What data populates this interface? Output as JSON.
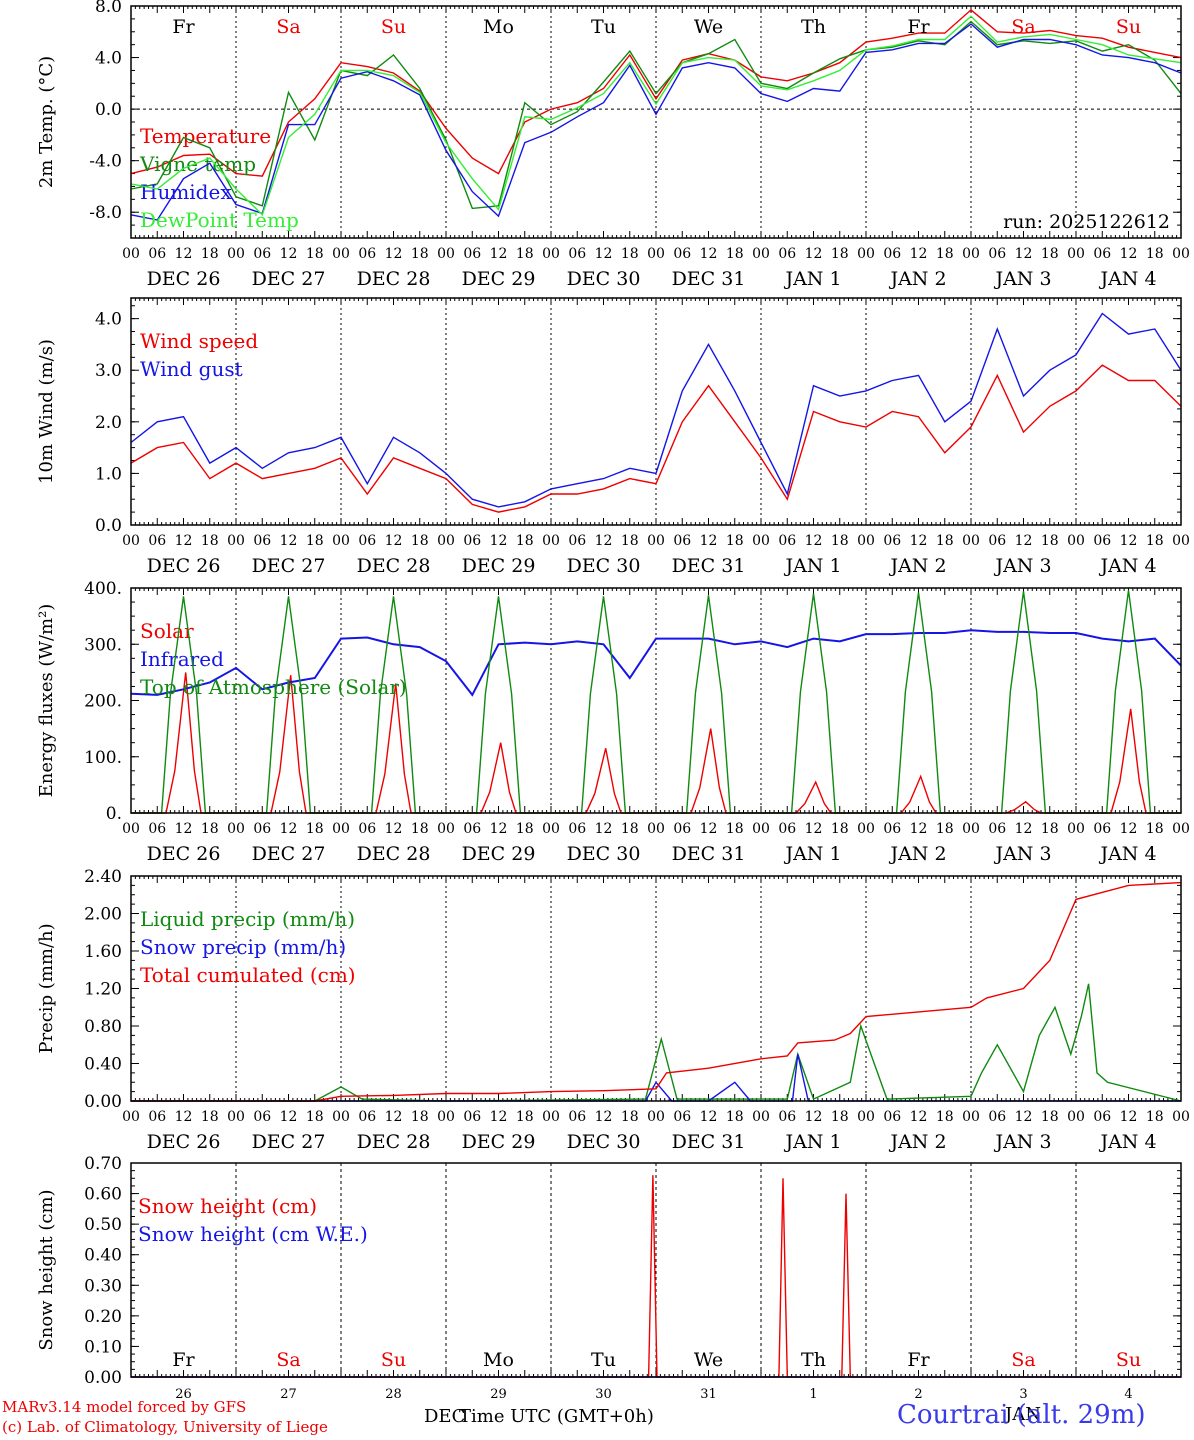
{
  "days": [
    "Fr",
    "Sa",
    "Su",
    "Mo",
    "Tu",
    "We",
    "Th",
    "Fr",
    "Sa",
    "Su"
  ],
  "weekend": [
    false,
    true,
    true,
    false,
    false,
    false,
    false,
    false,
    true,
    true
  ],
  "hour_labels": [
    "00",
    "06",
    "12",
    "18"
  ],
  "date_labels": [
    "DEC 26",
    "DEC 27",
    "DEC 28",
    "DEC 29",
    "DEC 30",
    "DEC 31",
    "JAN  1",
    "JAN  2",
    "JAN  3",
    "JAN  4"
  ],
  "bottom_day_numbers": [
    "26",
    "27",
    "28",
    "29",
    "30",
    "31",
    "1",
    "2",
    "3",
    "4"
  ],
  "colors": {
    "red": "#ee0000",
    "green": "#108a10",
    "blue": "#1515e6",
    "lightgreen": "#33ee33",
    "title_blue": "#3a3ae6"
  },
  "footer": {
    "model": "MARv3.14 model forced by GFS",
    "credit": "(c) Lab. of Climatology, University of Liege",
    "xlabel": "Time UTC (GMT+0h)",
    "month_left": "DEC",
    "month_right": "JAN",
    "location": "Courtrai (alt. 29m)"
  },
  "chart_data": [
    {
      "type": "line",
      "ylabel": "2m Temp. (°C)",
      "ylim": [
        -10,
        8
      ],
      "yticks": [
        8,
        4,
        0,
        -4,
        -8
      ],
      "ytick_labels": [
        "8.0",
        "4.0",
        "0.0",
        "-4.0",
        "-8.0"
      ],
      "zero_line": true,
      "note": "run: 2025122612",
      "x_unit": "days since DEC 26 00 UTC",
      "series": [
        {
          "name": "Temperature",
          "color": "red",
          "x": [
            0,
            0.25,
            0.5,
            0.75,
            1,
            1.25,
            1.5,
            1.75,
            2,
            2.25,
            2.5,
            2.75,
            3,
            3.25,
            3.5,
            3.75,
            4,
            4.25,
            4.5,
            4.75,
            5,
            5.25,
            5.5,
            5.75,
            6,
            6.25,
            6.5,
            6.75,
            7,
            7.25,
            7.5,
            7.75,
            8,
            8.25,
            8.5,
            8.75,
            9,
            9.25,
            9.5,
            9.75,
            10
          ],
          "y": [
            -5,
            -4.5,
            -3.6,
            -3.5,
            -5,
            -5.2,
            -1,
            0.8,
            3.6,
            3.3,
            2.8,
            1.4,
            -1.5,
            -3.8,
            -5,
            -1,
            0,
            0.5,
            1.6,
            4.2,
            0.8,
            3.8,
            4.3,
            3.8,
            2.5,
            2.2,
            2.8,
            3.6,
            5.2,
            5.5,
            5.9,
            5.9,
            7.7,
            6.0,
            5.9,
            6.1,
            5.7,
            5.5,
            4.8,
            4.4,
            4.0
          ]
        },
        {
          "name": "Vigne temp",
          "color": "green",
          "x": [
            0,
            0.25,
            0.5,
            0.75,
            1,
            1.25,
            1.5,
            1.75,
            2,
            2.25,
            2.5,
            2.75,
            3,
            3.25,
            3.5,
            3.75,
            4,
            4.25,
            4.5,
            4.75,
            5,
            5.25,
            5.5,
            5.75,
            6,
            6.25,
            6.5,
            6.75,
            7,
            7.25,
            7.5,
            7.75,
            8,
            8.25,
            8.5,
            8.75,
            9,
            9.25,
            9.5,
            9.75,
            10
          ],
          "y": [
            -6.2,
            -5.8,
            -2.2,
            -3.0,
            -6.8,
            -7.5,
            1.3,
            -2.4,
            3.0,
            2.6,
            4.2,
            1.6,
            -2.4,
            -7.7,
            -7.5,
            0.5,
            -1.2,
            -0.2,
            2.1,
            4.5,
            1.2,
            3.6,
            4.3,
            5.4,
            2.0,
            1.6,
            2.8,
            3.9,
            4.6,
            4.8,
            5.3,
            5.0,
            6.8,
            5.0,
            5.3,
            5.1,
            5.3,
            4.5,
            5.0,
            3.8,
            1.2
          ]
        },
        {
          "name": "Humidex",
          "color": "blue",
          "x": [
            0,
            0.25,
            0.5,
            0.75,
            1,
            1.25,
            1.5,
            1.75,
            2,
            2.25,
            2.5,
            2.75,
            3,
            3.25,
            3.5,
            3.75,
            4,
            4.25,
            4.5,
            4.75,
            5,
            5.25,
            5.5,
            5.75,
            6,
            6.25,
            6.5,
            6.75,
            7,
            7.25,
            7.5,
            7.75,
            8,
            8.25,
            8.5,
            8.75,
            9,
            9.25,
            9.5,
            9.75,
            10
          ],
          "y": [
            -8.2,
            -8.6,
            -5.4,
            -4.2,
            -7.4,
            -8.1,
            -1.2,
            -1.2,
            2.4,
            2.9,
            2.2,
            1.1,
            -3.2,
            -6.4,
            -8.3,
            -2.6,
            -1.8,
            -0.6,
            0.5,
            3.4,
            -0.4,
            3.2,
            3.6,
            3.2,
            1.2,
            0.6,
            1.6,
            1.4,
            4.4,
            4.6,
            5.1,
            5.1,
            6.6,
            4.8,
            5.4,
            5.4,
            5.0,
            4.2,
            4.0,
            3.6,
            2.8
          ]
        },
        {
          "name": "DewPoint Temp",
          "color": "lightgreen",
          "x": [
            0,
            0.25,
            0.5,
            0.75,
            1,
            1.25,
            1.5,
            1.75,
            2,
            2.25,
            2.5,
            2.75,
            3,
            3.25,
            3.5,
            3.75,
            4,
            4.25,
            4.5,
            4.75,
            5,
            5.25,
            5.5,
            5.75,
            6,
            6.25,
            6.5,
            6.75,
            7,
            7.25,
            7.5,
            7.75,
            8,
            8.25,
            8.5,
            8.75,
            9,
            9.25,
            9.5,
            9.75,
            10
          ],
          "y": [
            -5.8,
            -6.2,
            -4.6,
            -3.8,
            -6.2,
            -8.2,
            -2.2,
            -0.4,
            3.0,
            3.0,
            2.6,
            1.3,
            -2.6,
            -5.4,
            -7.8,
            -0.6,
            -0.8,
            0.1,
            1.2,
            3.6,
            0.4,
            3.6,
            4.0,
            3.8,
            1.8,
            1.5,
            2.2,
            3.0,
            4.6,
            4.9,
            5.4,
            5.4,
            7.2,
            5.2,
            5.6,
            5.8,
            5.4,
            5.0,
            4.2,
            3.9,
            3.6
          ]
        }
      ]
    },
    {
      "type": "line",
      "ylabel": "10m Wind (m/s)",
      "ylim": [
        0,
        4.4
      ],
      "yticks": [
        4,
        3,
        2,
        1,
        0
      ],
      "ytick_labels": [
        "4.0",
        "3.0",
        "2.0",
        "1.0",
        "0.0"
      ],
      "series": [
        {
          "name": "Wind speed",
          "color": "red",
          "x": [
            0,
            0.25,
            0.5,
            0.75,
            1,
            1.25,
            1.5,
            1.75,
            2,
            2.25,
            2.5,
            2.75,
            3,
            3.25,
            3.5,
            3.75,
            4,
            4.25,
            4.5,
            4.75,
            5,
            5.25,
            5.5,
            5.75,
            6,
            6.25,
            6.5,
            6.75,
            7,
            7.25,
            7.5,
            7.75,
            8,
            8.25,
            8.5,
            8.75,
            9,
            9.25,
            9.5,
            9.75,
            10
          ],
          "y": [
            1.2,
            1.5,
            1.6,
            0.9,
            1.2,
            0.9,
            1.0,
            1.1,
            1.3,
            0.6,
            1.3,
            1.1,
            0.9,
            0.4,
            0.25,
            0.35,
            0.6,
            0.6,
            0.7,
            0.9,
            0.8,
            2.0,
            2.7,
            2.0,
            1.3,
            0.5,
            2.2,
            2.0,
            1.9,
            2.2,
            2.1,
            1.4,
            1.9,
            2.9,
            1.8,
            2.3,
            2.6,
            3.1,
            2.8,
            2.8,
            2.3
          ]
        },
        {
          "name": "Wind gust",
          "color": "blue",
          "x": [
            0,
            0.25,
            0.5,
            0.75,
            1,
            1.25,
            1.5,
            1.75,
            2,
            2.25,
            2.5,
            2.75,
            3,
            3.25,
            3.5,
            3.75,
            4,
            4.25,
            4.5,
            4.75,
            5,
            5.25,
            5.5,
            5.75,
            6,
            6.25,
            6.5,
            6.75,
            7,
            7.25,
            7.5,
            7.75,
            8,
            8.25,
            8.5,
            8.75,
            9,
            9.25,
            9.5,
            9.75,
            10
          ],
          "y": [
            1.6,
            2.0,
            2.1,
            1.2,
            1.5,
            1.1,
            1.4,
            1.5,
            1.7,
            0.8,
            1.7,
            1.4,
            1.0,
            0.5,
            0.35,
            0.45,
            0.7,
            0.8,
            0.9,
            1.1,
            1.0,
            2.6,
            3.5,
            2.6,
            1.6,
            0.6,
            2.7,
            2.5,
            2.6,
            2.8,
            2.9,
            2.0,
            2.4,
            3.8,
            2.5,
            3.0,
            3.3,
            4.1,
            3.7,
            3.8,
            3.0
          ]
        }
      ]
    },
    {
      "type": "line",
      "ylabel": "Energy fluxes (W/m²)",
      "ylim": [
        0,
        400
      ],
      "yticks": [
        400,
        300,
        200,
        100,
        0
      ],
      "ytick_labels": [
        "400.",
        "300.",
        "200.",
        "100.",
        "0."
      ],
      "series": [
        {
          "name": "Solar",
          "color": "red",
          "peaks": [
            250,
            245,
            230,
            125,
            115,
            150,
            55,
            65,
            20,
            185
          ]
        },
        {
          "name": "Infrared",
          "color": "blue",
          "x": [
            0,
            0.25,
            0.5,
            0.75,
            1,
            1.25,
            1.5,
            1.75,
            2,
            2.25,
            2.5,
            2.75,
            3,
            3.25,
            3.5,
            3.75,
            4,
            4.25,
            4.5,
            4.75,
            5,
            5.25,
            5.5,
            5.75,
            6,
            6.25,
            6.5,
            6.75,
            7,
            7.25,
            7.5,
            7.75,
            8,
            8.25,
            8.5,
            8.75,
            9,
            9.25,
            9.5,
            9.75,
            10
          ],
          "y": [
            212,
            210,
            220,
            232,
            258,
            220,
            232,
            240,
            310,
            312,
            300,
            295,
            270,
            210,
            300,
            303,
            300,
            305,
            300,
            240,
            310,
            310,
            310,
            300,
            305,
            295,
            310,
            305,
            318,
            318,
            320,
            320,
            325,
            322,
            322,
            320,
            320,
            310,
            305,
            310,
            262
          ]
        },
        {
          "name": "Top of Atmosphere (Solar)",
          "color": "green",
          "peaks": [
            385,
            385,
            385,
            385,
            385,
            387,
            390,
            392,
            394,
            396
          ]
        }
      ]
    },
    {
      "type": "line",
      "ylabel": "Precip (mm/h)",
      "ylim": [
        0,
        2.4
      ],
      "yticks": [
        2.4,
        2.0,
        1.6,
        1.2,
        0.8,
        0.4,
        0.0
      ],
      "ytick_labels": [
        "2.40",
        "2.00",
        "1.60",
        "1.20",
        "0.80",
        "0.40",
        "0.00"
      ],
      "series": [
        {
          "name": "Liquid precip (mm/h)",
          "color": "green",
          "x": [
            0,
            1,
            1.75,
            2,
            2.2,
            3,
            4.9,
            5.05,
            5.2,
            6.25,
            6.35,
            6.5,
            6.85,
            6.95,
            7.2,
            8,
            8.1,
            8.25,
            8.5,
            8.65,
            8.8,
            8.95,
            9.05,
            9.12,
            9.2,
            9.3,
            10
          ],
          "y": [
            0,
            0,
            0,
            0.15,
            0.02,
            0,
            0.02,
            0.66,
            0.02,
            0.02,
            0.5,
            0.02,
            0.2,
            0.8,
            0.02,
            0.05,
            0.3,
            0.6,
            0.1,
            0.7,
            1.0,
            0.5,
            0.9,
            1.25,
            0.3,
            0.2,
            0
          ]
        },
        {
          "name": "Snow precip (mm/h)",
          "color": "blue",
          "x": [
            0,
            4.9,
            5.0,
            5.15,
            5.5,
            5.75,
            5.9,
            6.3,
            6.35,
            6.45,
            7,
            10
          ],
          "y": [
            0,
            0,
            0.2,
            0,
            0,
            0.2,
            0,
            0,
            0.5,
            0,
            0,
            0
          ]
        },
        {
          "name": "Total cumulated (cm)",
          "color": "red",
          "x": [
            0,
            1.75,
            2,
            2.5,
            3,
            3.5,
            4,
            4.5,
            5,
            5.1,
            5.5,
            6,
            6.25,
            6.35,
            6.7,
            6.85,
            7,
            7.5,
            8,
            8.15,
            8.5,
            8.75,
            9,
            9.5,
            10
          ],
          "y": [
            0,
            0,
            0.05,
            0.06,
            0.08,
            0.08,
            0.1,
            0.11,
            0.13,
            0.3,
            0.35,
            0.45,
            0.48,
            0.62,
            0.65,
            0.72,
            0.9,
            0.95,
            1.0,
            1.1,
            1.2,
            1.5,
            2.15,
            2.3,
            2.33
          ]
        }
      ]
    },
    {
      "type": "line",
      "ylabel": "Snow height (cm)",
      "ylim": [
        0,
        0.7
      ],
      "yticks": [
        0.7,
        0.6,
        0.5,
        0.4,
        0.3,
        0.2,
        0.1,
        0.0
      ],
      "ytick_labels": [
        "0.70",
        "0.60",
        "0.50",
        "0.40",
        "0.30",
        "0.20",
        "0.10",
        "0.00"
      ],
      "series": [
        {
          "name": "Snow height (cm)",
          "color": "red",
          "x": [
            0,
            4.93,
            4.97,
            5.01,
            6.17,
            6.21,
            6.25,
            6.77,
            6.81,
            6.85,
            10
          ],
          "y": [
            0,
            0,
            0.66,
            0,
            0,
            0.65,
            0,
            0,
            0.6,
            0,
            0
          ]
        },
        {
          "name": "Snow height (cm W.E.)",
          "color": "blue",
          "x": [
            0,
            10
          ],
          "y": [
            0,
            0
          ]
        }
      ]
    }
  ]
}
